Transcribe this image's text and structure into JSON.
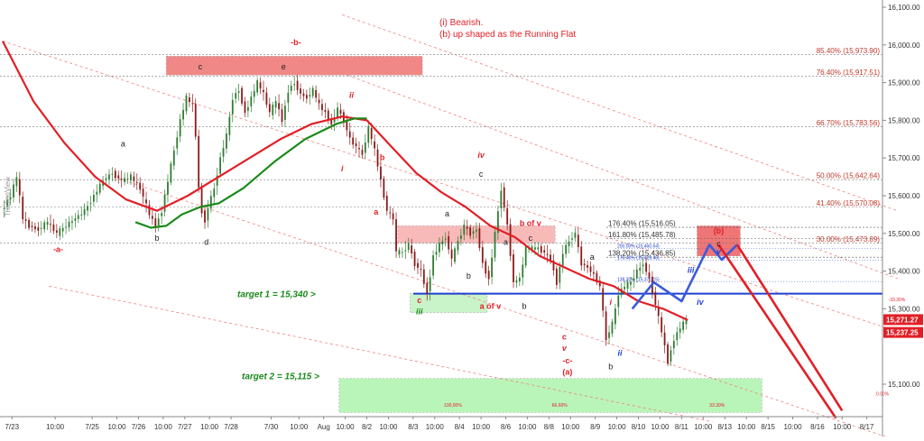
{
  "chart_data": {
    "type": "line",
    "instrument_watermark": "TradingView",
    "annotation_title": [
      "(i) Bearish.",
      "(b) up shaped as the Running Flat"
    ],
    "y_axis": {
      "ylim": [
        15000,
        16100
      ],
      "ticks": [
        {
          "value": 16100,
          "label": "16,100.00"
        },
        {
          "value": 16000,
          "label": "16,000.00"
        },
        {
          "value": 15900,
          "label": "15,900.00"
        },
        {
          "value": 15800,
          "label": "15,800.00"
        },
        {
          "value": 15700,
          "label": "15,700.00"
        },
        {
          "value": 15600,
          "label": "15,600.00"
        },
        {
          "value": 15500,
          "label": "15,500.00"
        },
        {
          "value": 15400,
          "label": "15,400.00"
        },
        {
          "value": 15300,
          "label": "15,300.00"
        },
        {
          "value": 15100,
          "label": "15,100.00"
        }
      ]
    },
    "x_axis": {
      "bar_range": [
        0,
        230
      ],
      "ticks": [
        {
          "bar": 3,
          "label": "7/23"
        },
        {
          "bar": 17,
          "label": "10:00"
        },
        {
          "bar": 29,
          "label": "7/25"
        },
        {
          "bar": 37,
          "label": "10:00"
        },
        {
          "bar": 44,
          "label": "7/26"
        },
        {
          "bar": 52,
          "label": "10:00"
        },
        {
          "bar": 59,
          "label": "7/27"
        },
        {
          "bar": 67,
          "label": "10:00"
        },
        {
          "bar": 74,
          "label": "7/28"
        },
        {
          "bar": 87,
          "label": "7/30"
        },
        {
          "bar": 96,
          "label": "10:00"
        },
        {
          "bar": 104,
          "label": "Aug"
        },
        {
          "bar": 111,
          "label": "10:00"
        },
        {
          "bar": 118,
          "label": "8/2"
        },
        {
          "bar": 125,
          "label": "10:00"
        },
        {
          "bar": 133,
          "label": "8/3"
        },
        {
          "bar": 140,
          "label": "10:00"
        },
        {
          "bar": 148,
          "label": "8/4"
        },
        {
          "bar": 155,
          "label": "10:00"
        },
        {
          "bar": 163,
          "label": "8/6"
        },
        {
          "bar": 170,
          "label": "10:00"
        },
        {
          "bar": 177,
          "label": "8/8"
        },
        {
          "bar": 184,
          "label": "10:00"
        },
        {
          "bar": 192,
          "label": "8/9"
        },
        {
          "bar": 199,
          "label": "10:00"
        },
        {
          "bar": 206,
          "label": "8/10"
        },
        {
          "bar": 213,
          "label": "10:00"
        },
        {
          "bar": 220,
          "label": "8/11"
        },
        {
          "bar": 227,
          "label": "10:00"
        },
        {
          "bar": 234,
          "label": "8/13"
        },
        {
          "bar": 241,
          "label": "10:00"
        },
        {
          "bar": 248,
          "label": "8/15"
        },
        {
          "bar": 256,
          "label": "10:00"
        },
        {
          "bar": 264,
          "label": "8/16"
        },
        {
          "bar": 272,
          "label": "10:00"
        },
        {
          "bar": 280,
          "label": "8/17"
        },
        {
          "bar": 287,
          "label": "10:00"
        }
      ]
    },
    "price_path": [
      [
        0,
        15560
      ],
      [
        3,
        15600
      ],
      [
        5,
        15650
      ],
      [
        7,
        15540
      ],
      [
        9,
        15520
      ],
      [
        12,
        15510
      ],
      [
        15,
        15530
      ],
      [
        18,
        15500
      ],
      [
        21,
        15520
      ],
      [
        24,
        15540
      ],
      [
        27,
        15560
      ],
      [
        30,
        15600
      ],
      [
        33,
        15640
      ],
      [
        36,
        15660
      ],
      [
        39,
        15640
      ],
      [
        42,
        15650
      ],
      [
        45,
        15620
      ],
      [
        48,
        15550
      ],
      [
        50,
        15520
      ],
      [
        52,
        15560
      ],
      [
        54,
        15640
      ],
      [
        56,
        15720
      ],
      [
        58,
        15800
      ],
      [
        60,
        15860
      ],
      [
        62,
        15840
      ],
      [
        63,
        15760
      ],
      [
        64,
        15620
      ],
      [
        65,
        15560
      ],
      [
        66,
        15530
      ],
      [
        67,
        15570
      ],
      [
        69,
        15620
      ],
      [
        71,
        15700
      ],
      [
        73,
        15760
      ],
      [
        75,
        15860
      ],
      [
        77,
        15880
      ],
      [
        79,
        15820
      ],
      [
        81,
        15860
      ],
      [
        83,
        15900
      ],
      [
        85,
        15870
      ],
      [
        87,
        15820
      ],
      [
        89,
        15850
      ],
      [
        91,
        15800
      ],
      [
        93,
        15880
      ],
      [
        95,
        15900
      ],
      [
        97,
        15870
      ],
      [
        99,
        15860
      ],
      [
        101,
        15880
      ],
      [
        103,
        15840
      ],
      [
        105,
        15820
      ],
      [
        107,
        15790
      ],
      [
        109,
        15830
      ],
      [
        111,
        15800
      ],
      [
        113,
        15750
      ],
      [
        115,
        15730
      ],
      [
        117,
        15710
      ],
      [
        119,
        15780
      ],
      [
        121,
        15720
      ],
      [
        123,
        15640
      ],
      [
        125,
        15560
      ],
      [
        127,
        15540
      ],
      [
        128,
        15450
      ],
      [
        130,
        15450
      ],
      [
        132,
        15470
      ],
      [
        134,
        15420
      ],
      [
        136,
        15400
      ],
      [
        138,
        15340
      ],
      [
        140,
        15440
      ],
      [
        142,
        15470
      ],
      [
        144,
        15490
      ],
      [
        146,
        15430
      ],
      [
        148,
        15480
      ],
      [
        150,
        15520
      ],
      [
        152,
        15500
      ],
      [
        154,
        15510
      ],
      [
        156,
        15420
      ],
      [
        158,
        15380
      ],
      [
        160,
        15500
      ],
      [
        162,
        15620
      ],
      [
        164,
        15520
      ],
      [
        166,
        15370
      ],
      [
        168,
        15380
      ],
      [
        170,
        15460
      ],
      [
        172,
        15460
      ],
      [
        174,
        15460
      ],
      [
        176,
        15450
      ],
      [
        178,
        15430
      ],
      [
        180,
        15370
      ],
      [
        182,
        15450
      ],
      [
        184,
        15480
      ],
      [
        186,
        15500
      ],
      [
        188,
        15420
      ],
      [
        190,
        15410
      ],
      [
        192,
        15390
      ],
      [
        194,
        15360
      ],
      [
        196,
        15220
      ],
      [
        198,
        15260
      ],
      [
        200,
        15340
      ],
      [
        202,
        15360
      ],
      [
        204,
        15370
      ],
      [
        206,
        15400
      ],
      [
        208,
        15420
      ],
      [
        210,
        15380
      ],
      [
        212,
        15310
      ],
      [
        214,
        15240
      ],
      [
        216,
        15160
      ],
      [
        218,
        15220
      ],
      [
        220,
        15250
      ],
      [
        222,
        15270
      ]
    ],
    "series": [
      {
        "name": "",
        "color": "#e21f26",
        "values": [
          [
            0,
            16010
          ],
          [
            10,
            15850
          ],
          [
            20,
            15740
          ],
          [
            30,
            15650
          ],
          [
            40,
            15590
          ],
          [
            50,
            15560
          ],
          [
            60,
            15600
          ],
          [
            70,
            15650
          ],
          [
            80,
            15700
          ],
          [
            90,
            15750
          ],
          [
            100,
            15790
          ],
          [
            110,
            15810
          ],
          [
            118,
            15800
          ],
          [
            126,
            15730
          ],
          [
            134,
            15660
          ],
          [
            142,
            15610
          ],
          [
            150,
            15570
          ],
          [
            158,
            15520
          ],
          [
            166,
            15490
          ],
          [
            174,
            15440
          ],
          [
            182,
            15410
          ],
          [
            190,
            15380
          ],
          [
            198,
            15360
          ],
          [
            206,
            15320
          ],
          [
            214,
            15300
          ],
          [
            222,
            15270
          ]
        ]
      },
      {
        "name": "",
        "color": "#1b8a1b",
        "values": [
          [
            43,
            15530
          ],
          [
            48,
            15515
          ],
          [
            53,
            15520
          ],
          [
            58,
            15550
          ],
          [
            64,
            15570
          ],
          [
            70,
            15580
          ],
          [
            78,
            15620
          ],
          [
            88,
            15690
          ],
          [
            98,
            15750
          ],
          [
            108,
            15790
          ],
          [
            114,
            15805
          ],
          [
            118,
            15805
          ]
        ]
      }
    ],
    "fib_levels": [
      {
        "price": 15973.9,
        "label": "85.40% (15,973.90)"
      },
      {
        "price": 15917.51,
        "label": "76.40% (15,917.51)"
      },
      {
        "price": 15783.56,
        "label": "66.70% (15,783.56)"
      },
      {
        "price": 15642.64,
        "label": "50.00% (15,642.64)"
      },
      {
        "price": 15570.08,
        "label": "41.40% (15,570.08)"
      },
      {
        "price": 15473.89,
        "label": "30.00% (15,473.89)"
      }
    ],
    "ext_levels_bold": [
      {
        "price": 15516.05,
        "label": "176.40% (15,516.05)"
      },
      {
        "price": 15485.78,
        "label": "161.80% (15,485.78)"
      },
      {
        "price": 15436.85,
        "label": "138.20% (15,436.85)"
      }
    ],
    "ext_levels_small": [
      {
        "price": 15460.64,
        "label": "200.00% (15,460.64)"
      },
      {
        "price": 15428.46,
        "label": "176.40% (15,428.46)"
      },
      {
        "price": 15371.15,
        "label": "138.20% (15,371.15)"
      }
    ],
    "targets": [
      {
        "price": 15340,
        "label": "target 1 = 15,340 >"
      },
      {
        "price": 15115,
        "label": "target 2 = 15,115 >"
      }
    ],
    "price_badges": [
      {
        "price": 15271.27,
        "label": "15,271.27",
        "color": "#e21f26"
      },
      {
        "price": 15237.25,
        "label": "15,237.25",
        "color": "#e21f26"
      }
    ],
    "channel_percent_labels": [
      {
        "label": "-33.30%",
        "bar": 287,
        "price": 15320
      },
      {
        "label": "100.00%",
        "bar": 143,
        "price": 15040
      },
      {
        "label": "66.60%",
        "bar": 178,
        "price": 15040
      },
      {
        "label": "33.30%",
        "bar": 229,
        "price": 15040
      },
      {
        "label": "0.00%",
        "bar": 283,
        "price": 15070
      }
    ],
    "wave_labels": [
      {
        "text": "-a-",
        "bar": 18,
        "price": 15450,
        "color": "#e21f26"
      },
      {
        "text": "-b-",
        "bar": 95,
        "price": 16000,
        "color": "#e21f26"
      },
      {
        "text": "a",
        "bar": 39,
        "price": 15730,
        "color": "#222222"
      },
      {
        "text": "b",
        "bar": 50,
        "price": 15480,
        "color": "#222222"
      },
      {
        "text": "c",
        "bar": 64,
        "price": 15935,
        "color": "#222222"
      },
      {
        "text": "d",
        "bar": 66,
        "price": 15470,
        "color": "#222222"
      },
      {
        "text": "e",
        "bar": 91,
        "price": 15935,
        "color": "#222222"
      },
      {
        "text": "ii",
        "bar": 113,
        "price": 15860,
        "color": "#e21f26"
      },
      {
        "text": "b",
        "bar": 123,
        "price": 15695,
        "color": "#e21f26"
      },
      {
        "text": "i",
        "bar": 110,
        "price": 15665,
        "color": "#e21f26"
      },
      {
        "text": "a",
        "bar": 121,
        "price": 15550,
        "color": "#e21f26"
      },
      {
        "text": "c",
        "bar": 135,
        "price": 15315,
        "color": "#e21f26"
      },
      {
        "text": "iii",
        "bar": 135,
        "price": 15285,
        "color": "#1b8a1b"
      },
      {
        "text": "a",
        "bar": 144,
        "price": 15545,
        "color": "#222222"
      },
      {
        "text": "b",
        "bar": 151,
        "price": 15380,
        "color": "#222222"
      },
      {
        "text": "iv",
        "bar": 155,
        "price": 15700,
        "color": "#e21f26"
      },
      {
        "text": "c",
        "bar": 155,
        "price": 15650,
        "color": "#222222"
      },
      {
        "text": "b of v",
        "bar": 171,
        "price": 15520,
        "color": "#e21f26"
      },
      {
        "text": "a",
        "bar": 163,
        "price": 15470,
        "color": "#222222"
      },
      {
        "text": "c",
        "bar": 171,
        "price": 15480,
        "color": "#222222"
      },
      {
        "text": "a of v",
        "bar": 158,
        "price": 15300,
        "color": "#e21f26"
      },
      {
        "text": "b",
        "bar": 169,
        "price": 15300,
        "color": "#222222"
      },
      {
        "text": "a",
        "bar": 191,
        "price": 15430,
        "color": "#222222"
      },
      {
        "text": "c",
        "bar": 182,
        "price": 15218,
        "color": "#e21f26"
      },
      {
        "text": "v",
        "bar": 182,
        "price": 15188,
        "color": "#e21f26"
      },
      {
        "text": "-c-",
        "bar": 183,
        "price": 15155,
        "color": "#e21f26"
      },
      {
        "text": "(a)",
        "bar": 183,
        "price": 15125,
        "color": "#e21f26"
      },
      {
        "text": "i",
        "bar": 197,
        "price": 15310,
        "color": "#e21f26"
      },
      {
        "text": "ii",
        "bar": 200,
        "price": 15175,
        "color": "#1f3fd1"
      },
      {
        "text": "b",
        "bar": 197,
        "price": 15140,
        "color": "#222222"
      },
      {
        "text": "iii",
        "bar": 223,
        "price": 15395,
        "color": "#1f3fd1"
      },
      {
        "text": "iv",
        "bar": 226,
        "price": 15310,
        "color": "#1f3fd1"
      },
      {
        "text": "(b)",
        "bar": 232,
        "price": 15500,
        "color": "#e21f26"
      },
      {
        "text": "c",
        "bar": 232,
        "price": 15465,
        "color": "#222222"
      },
      {
        "text": "v",
        "bar": 232,
        "price": 15445,
        "color": "#1f3fd1"
      }
    ],
    "projection_path": [
      [
        204,
        15300
      ],
      [
        211,
        15370
      ],
      [
        220,
        15320
      ],
      [
        229,
        15470
      ],
      [
        233,
        15430
      ],
      [
        238,
        15470
      ]
    ],
    "decline_lines": [
      [
        [
          232,
          15470
        ],
        [
          270,
          15010
        ]
      ],
      [
        [
          238,
          15470
        ],
        [
          272,
          15030
        ]
      ]
    ],
    "channel_lines": [
      [
        [
          0,
          16010
        ],
        [
          290,
          15240
        ]
      ],
      [
        [
          36,
          15650
        ],
        [
          290,
          14950
        ]
      ],
      [
        [
          105,
          15940
        ],
        [
          290,
          15380
        ]
      ],
      [
        [
          110,
          16080
        ],
        [
          290,
          15560
        ]
      ],
      [
        [
          15,
          15360
        ],
        [
          230,
          15000
        ]
      ]
    ],
    "zones": [
      {
        "bars": [
          53,
          136
        ],
        "prices": [
          15920,
          15970
        ],
        "color": "rgba(232,72,72,0.65)"
      },
      {
        "bars": [
          128,
          179
        ],
        "prices": [
          15475,
          15520
        ],
        "color": "rgba(240,100,100,0.45)"
      },
      {
        "bars": [
          132,
          157
        ],
        "prices": [
          15290,
          15340
        ],
        "color": "rgba(100,220,100,0.35)"
      },
      {
        "bars": [
          109,
          246
        ],
        "prices": [
          15025,
          15115
        ],
        "color": "rgba(100,230,100,0.45)"
      },
      {
        "bars": [
          225,
          239
        ],
        "prices": [
          15440,
          15520
        ],
        "color": "rgba(232,72,72,0.75)"
      }
    ]
  }
}
